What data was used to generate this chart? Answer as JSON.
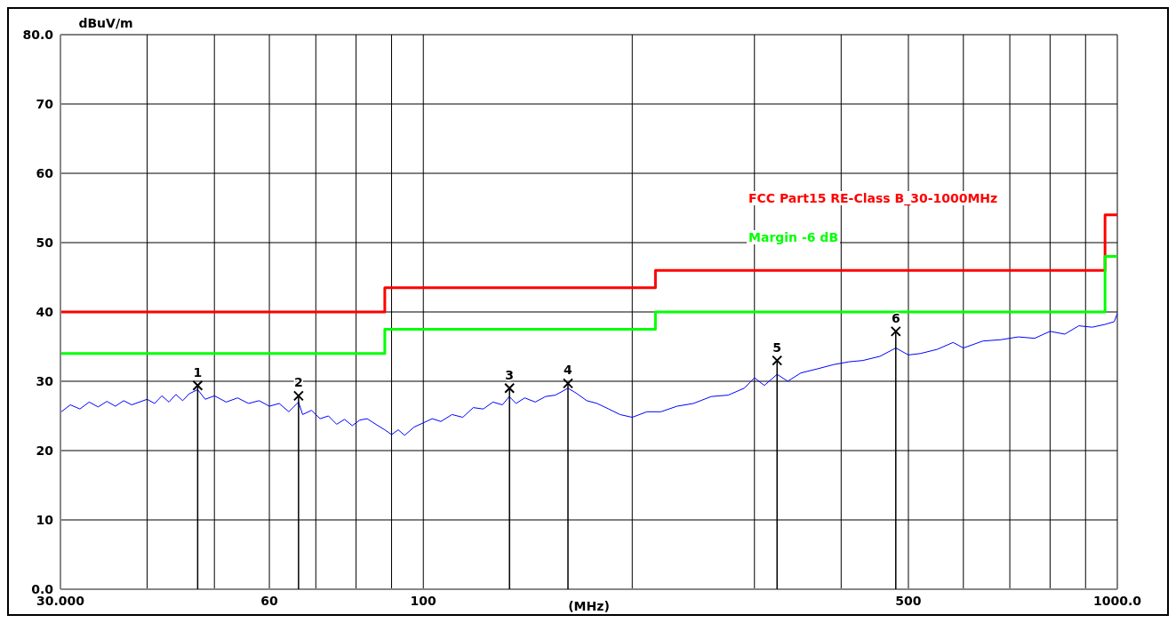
{
  "chart_data": {
    "type": "line",
    "xlabel": "(MHz)",
    "ylabel": "dBuV/m",
    "log": "x",
    "grid": true,
    "legend": "top right",
    "xlim": [
      30,
      1000
    ],
    "ylim": [
      0,
      80
    ],
    "xticks": [
      {
        "value": 30,
        "label": "30.000"
      },
      {
        "value": 40,
        "label": null
      },
      {
        "value": 50,
        "label": null
      },
      60,
      {
        "value": 70,
        "label": null
      },
      {
        "value": 80,
        "label": null
      },
      {
        "value": 90,
        "label": null
      },
      100,
      {
        "value": 200,
        "label": null
      },
      {
        "value": 300,
        "label": null
      },
      {
        "value": 400,
        "label": null
      },
      500,
      {
        "value": 600,
        "label": null
      },
      {
        "value": 700,
        "label": null
      },
      {
        "value": 800,
        "label": null
      },
      {
        "value": 900,
        "label": null
      },
      {
        "value": 1000,
        "label": "1000.0"
      }
    ],
    "yticks": [
      {
        "value": 0,
        "label": "0.0"
      },
      10,
      20,
      30,
      40,
      50,
      60,
      70,
      {
        "value": 80,
        "label": "80.0"
      }
    ],
    "series": [
      {
        "color": "#0000ff",
        "x": [
          30,
          31,
          32,
          33,
          34,
          35,
          36,
          37,
          38,
          40,
          41,
          42,
          43,
          44,
          45,
          46,
          47.3,
          48.5,
          50,
          52,
          54,
          56,
          58,
          60,
          62,
          64,
          66.1,
          67,
          69,
          71,
          73,
          75,
          77,
          79,
          81,
          83,
          86,
          88,
          90,
          92,
          94,
          97,
          100,
          103,
          106,
          110,
          114,
          118,
          122,
          126,
          130,
          133,
          136,
          140,
          145,
          150,
          155,
          161.6,
          166,
          172,
          178,
          185,
          192,
          200,
          210,
          220,
          232,
          245,
          260,
          275,
          290,
          300,
          310,
          323.4,
          335,
          350,
          370,
          390,
          410,
          430,
          455,
          479.5,
          500,
          520,
          550,
          580,
          600,
          640,
          680,
          720,
          760,
          800,
          840,
          880,
          920,
          960,
          990,
          1000
        ],
        "values": [
          25.5,
          26.6,
          26.0,
          27.0,
          26.3,
          27.1,
          26.4,
          27.2,
          26.6,
          27.4,
          26.8,
          27.9,
          27.0,
          28.1,
          27.2,
          28.2,
          28.8,
          27.4,
          27.9,
          27.0,
          27.6,
          26.8,
          27.2,
          26.4,
          26.8,
          25.6,
          27.0,
          25.2,
          25.8,
          24.6,
          25.0,
          23.8,
          24.5,
          23.6,
          24.4,
          24.6,
          23.6,
          23.0,
          22.3,
          23.0,
          22.2,
          23.4,
          24.0,
          24.6,
          24.2,
          25.2,
          24.8,
          26.2,
          26.0,
          27.0,
          26.6,
          27.8,
          26.8,
          27.6,
          27.0,
          27.8,
          28.0,
          29.0,
          28.3,
          27.2,
          26.8,
          26.0,
          25.2,
          24.8,
          25.6,
          25.6,
          26.4,
          26.8,
          27.8,
          28.0,
          29.0,
          30.5,
          29.4,
          31.0,
          30.0,
          31.2,
          31.8,
          32.4,
          32.8,
          33.0,
          33.6,
          34.8,
          33.8,
          34.0,
          34.6,
          35.6,
          34.8,
          35.8,
          36.0,
          36.4,
          36.2,
          37.2,
          36.8,
          38.0,
          37.8,
          38.2,
          38.6,
          39.8
        ]
      },
      {
        "type": "step",
        "name": "FCC Part15 RE-Class B_30-1000MHz",
        "color": "#ff0000",
        "x": [
          30,
          88,
          216,
          960,
          1000
        ],
        "values": [
          40,
          43.5,
          46,
          54,
          54
        ]
      },
      {
        "type": "step",
        "name": "Margin -6 dB",
        "color": "#00ff00",
        "x": [
          30,
          88,
          216,
          960,
          1000
        ],
        "values": [
          34,
          37.5,
          40,
          48,
          48
        ]
      },
      {
        "type": "scatter",
        "color": "#000000",
        "marker": "cross",
        "x": [
          47.3,
          66.1,
          133.1,
          161.6,
          323.4,
          479.5
        ],
        "values": [
          29.4,
          27.9,
          29.0,
          29.7,
          33.0,
          37.2
        ]
      }
    ],
    "annotations": [
      {
        "text": "1",
        "x": 47.3,
        "y": 29.4
      },
      {
        "text": "2",
        "x": 66.1,
        "y": 27.9
      },
      {
        "text": "3",
        "x": 133.1,
        "y": 29.0
      },
      {
        "text": "4",
        "x": 161.6,
        "y": 29.7
      },
      {
        "text": "5",
        "x": 323.4,
        "y": 33.0
      },
      {
        "text": "6",
        "x": 479.5,
        "y": 37.2
      }
    ]
  }
}
